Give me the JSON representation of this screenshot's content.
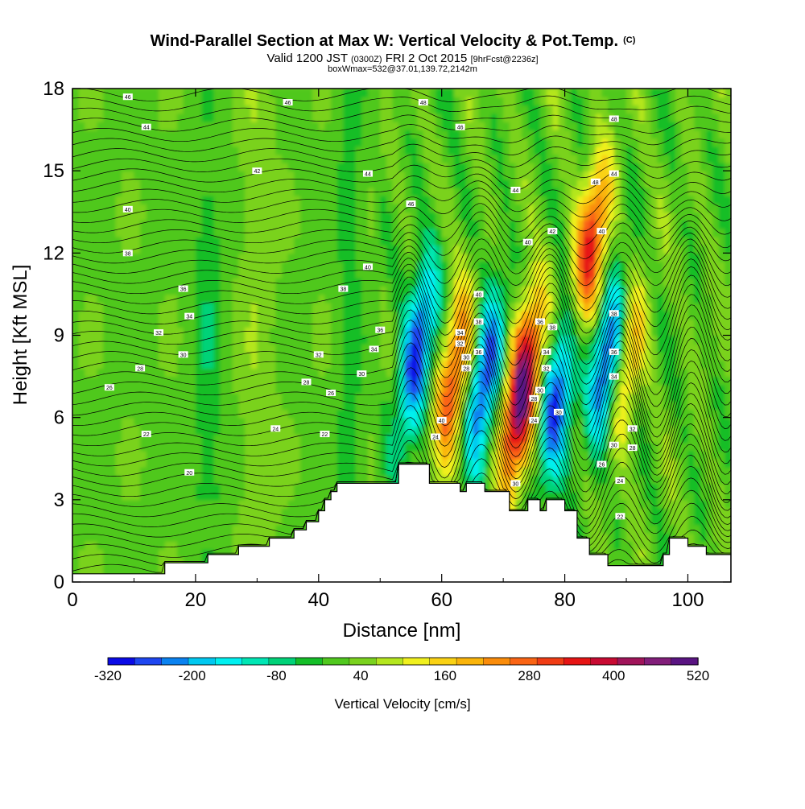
{
  "chart_data": {
    "type": "heatmap",
    "title": "Wind-Parallel Section at Max W: Vertical Velocity & Pot.Temp.",
    "title_mark": "(C)",
    "subtitle": {
      "pre": "Valid 1200 JST",
      "utc": "(0300Z)",
      "date": "FRI 2 Oct 2015",
      "fcst": "[9hrFcst@2236z]"
    },
    "subtitle2": "boxWmax=532@37.01,139.72,2142m",
    "xlabel": "Distance [nm]",
    "ylabel": "Height [Kft MSL]",
    "xlim": [
      0,
      107
    ],
    "ylim": [
      0,
      18
    ],
    "xticks": [
      0,
      20,
      40,
      60,
      80,
      100
    ],
    "yticks": [
      0,
      3,
      6,
      9,
      12,
      15,
      18
    ],
    "colorbar": {
      "label": "Vertical Velocity [cm/s]",
      "levels": [
        -320,
        -280,
        -240,
        -200,
        -160,
        -120,
        -80,
        -40,
        0,
        40,
        80,
        120,
        160,
        200,
        240,
        280,
        320,
        360,
        400,
        440,
        480,
        520
      ],
      "tick_labels": [
        -320,
        -200,
        -80,
        40,
        160,
        280,
        400,
        520
      ],
      "colors": [
        "#0a0ae6",
        "#1e46f0",
        "#0a82f0",
        "#00c8f0",
        "#00f0f0",
        "#00e6b4",
        "#00d278",
        "#14be28",
        "#50c81e",
        "#7ad21e",
        "#b4e61e",
        "#f0f01e",
        "#fad214",
        "#fab40a",
        "#fa8c0a",
        "#fa6414",
        "#f03c14",
        "#e61414",
        "#c80a32",
        "#a0145a",
        "#821e7a",
        "#5a1482"
      ]
    },
    "updraft_cores": [
      {
        "x": 62,
        "z": 7.5,
        "w": 300
      },
      {
        "x": 73,
        "z": 7.0,
        "w": 520
      },
      {
        "x": 84,
        "z": 12,
        "w": 340
      },
      {
        "x": 90,
        "z": 8,
        "w": 200
      }
    ],
    "downdraft_cores": [
      {
        "x": 56,
        "z": 8.5,
        "w": -320
      },
      {
        "x": 67,
        "z": 7.5,
        "w": -320
      },
      {
        "x": 79,
        "z": 7.0,
        "w": -320
      },
      {
        "x": 87,
        "z": 8,
        "w": -320
      }
    ],
    "terrain": [
      [
        0,
        0.3
      ],
      [
        15,
        0.3
      ],
      [
        15,
        0.7
      ],
      [
        22,
        0.7
      ],
      [
        22,
        1.0
      ],
      [
        27,
        1.0
      ],
      [
        27,
        1.3
      ],
      [
        32,
        1.3
      ],
      [
        32,
        1.6
      ],
      [
        36,
        1.6
      ],
      [
        36,
        1.9
      ],
      [
        38,
        1.9
      ],
      [
        38,
        2.2
      ],
      [
        40,
        2.2
      ],
      [
        40,
        2.6
      ],
      [
        41,
        2.6
      ],
      [
        41,
        3.0
      ],
      [
        42,
        3.0
      ],
      [
        42,
        3.3
      ],
      [
        43,
        3.3
      ],
      [
        43,
        3.6
      ],
      [
        53,
        3.6
      ],
      [
        53,
        4.3
      ],
      [
        58,
        4.3
      ],
      [
        58,
        3.6
      ],
      [
        63,
        3.6
      ],
      [
        63,
        3.3
      ],
      [
        64,
        3.3
      ],
      [
        64,
        3.6
      ],
      [
        67,
        3.6
      ],
      [
        67,
        3.3
      ],
      [
        71,
        3.3
      ],
      [
        71,
        2.6
      ],
      [
        74,
        2.6
      ],
      [
        74,
        3.0
      ],
      [
        76,
        3.0
      ],
      [
        76,
        2.6
      ],
      [
        77,
        2.6
      ],
      [
        77,
        3.0
      ],
      [
        80,
        3.0
      ],
      [
        80,
        2.6
      ],
      [
        82,
        2.6
      ],
      [
        82,
        1.6
      ],
      [
        84,
        1.6
      ],
      [
        84,
        1.0
      ],
      [
        87,
        1.0
      ],
      [
        87,
        0.6
      ],
      [
        96,
        0.6
      ],
      [
        96,
        1.0
      ],
      [
        97,
        1.0
      ],
      [
        97,
        1.6
      ],
      [
        100,
        1.6
      ],
      [
        100,
        1.3
      ],
      [
        103,
        1.3
      ],
      [
        103,
        1.0
      ],
      [
        107,
        1.0
      ]
    ],
    "theta_labels": [
      {
        "x": 9,
        "z": 17.7,
        "t": "46"
      },
      {
        "x": 12,
        "z": 16.6,
        "t": "44"
      },
      {
        "x": 30,
        "z": 15.0,
        "t": "42"
      },
      {
        "x": 9,
        "z": 13.6,
        "t": "40"
      },
      {
        "x": 9,
        "z": 12.0,
        "t": "38"
      },
      {
        "x": 18,
        "z": 10.7,
        "t": "36"
      },
      {
        "x": 19,
        "z": 9.7,
        "t": "34"
      },
      {
        "x": 14,
        "z": 9.1,
        "t": "32"
      },
      {
        "x": 18,
        "z": 8.3,
        "t": "30"
      },
      {
        "x": 11,
        "z": 7.8,
        "t": "28"
      },
      {
        "x": 6,
        "z": 7.1,
        "t": "26"
      },
      {
        "x": 12,
        "z": 5.4,
        "t": "22"
      },
      {
        "x": 19,
        "z": 4.0,
        "t": "20"
      },
      {
        "x": 35,
        "z": 17.5,
        "t": "46"
      },
      {
        "x": 48,
        "z": 14.9,
        "t": "44"
      },
      {
        "x": 48,
        "z": 11.5,
        "t": "40"
      },
      {
        "x": 44,
        "z": 10.7,
        "t": "38"
      },
      {
        "x": 50,
        "z": 9.2,
        "t": "36"
      },
      {
        "x": 49,
        "z": 8.5,
        "t": "34"
      },
      {
        "x": 40,
        "z": 8.3,
        "t": "32"
      },
      {
        "x": 47,
        "z": 7.6,
        "t": "30"
      },
      {
        "x": 38,
        "z": 7.3,
        "t": "28"
      },
      {
        "x": 42,
        "z": 6.9,
        "t": "26"
      },
      {
        "x": 33,
        "z": 5.6,
        "t": "24"
      },
      {
        "x": 41,
        "z": 5.4,
        "t": "22"
      },
      {
        "x": 57,
        "z": 17.5,
        "t": "48"
      },
      {
        "x": 63,
        "z": 16.6,
        "t": "46"
      },
      {
        "x": 55,
        "z": 13.8,
        "t": "46"
      },
      {
        "x": 72,
        "z": 14.3,
        "t": "44"
      },
      {
        "x": 74,
        "z": 12.4,
        "t": "40"
      },
      {
        "x": 78,
        "z": 12.8,
        "t": "42"
      },
      {
        "x": 66,
        "z": 10.5,
        "t": "40"
      },
      {
        "x": 66,
        "z": 9.5,
        "t": "38"
      },
      {
        "x": 63,
        "z": 9.1,
        "t": "34"
      },
      {
        "x": 63,
        "z": 8.7,
        "t": "32"
      },
      {
        "x": 66,
        "z": 8.4,
        "t": "36"
      },
      {
        "x": 64,
        "z": 8.2,
        "t": "30"
      },
      {
        "x": 64,
        "z": 7.8,
        "t": "28"
      },
      {
        "x": 76,
        "z": 9.5,
        "t": "36"
      },
      {
        "x": 78,
        "z": 9.3,
        "t": "38"
      },
      {
        "x": 77,
        "z": 8.4,
        "t": "34"
      },
      {
        "x": 77,
        "z": 7.8,
        "t": "32"
      },
      {
        "x": 76,
        "z": 7.0,
        "t": "30"
      },
      {
        "x": 79,
        "z": 6.2,
        "t": "30"
      },
      {
        "x": 75,
        "z": 6.7,
        "t": "28"
      },
      {
        "x": 75,
        "z": 5.9,
        "t": "24"
      },
      {
        "x": 60,
        "z": 5.9,
        "t": "40"
      },
      {
        "x": 59,
        "z": 5.3,
        "t": "24"
      },
      {
        "x": 72,
        "z": 3.6,
        "t": "30"
      },
      {
        "x": 88,
        "z": 16.9,
        "t": "48"
      },
      {
        "x": 88,
        "z": 14.9,
        "t": "44"
      },
      {
        "x": 85,
        "z": 14.6,
        "t": "48"
      },
      {
        "x": 86,
        "z": 12.8,
        "t": "40"
      },
      {
        "x": 88,
        "z": 9.8,
        "t": "38"
      },
      {
        "x": 88,
        "z": 8.4,
        "t": "36"
      },
      {
        "x": 88,
        "z": 7.5,
        "t": "34"
      },
      {
        "x": 91,
        "z": 5.6,
        "t": "32"
      },
      {
        "x": 88,
        "z": 5.0,
        "t": "30"
      },
      {
        "x": 91,
        "z": 4.9,
        "t": "28"
      },
      {
        "x": 86,
        "z": 4.3,
        "t": "26"
      },
      {
        "x": 89,
        "z": 3.7,
        "t": "24"
      },
      {
        "x": 89,
        "z": 2.4,
        "t": "22"
      }
    ]
  }
}
